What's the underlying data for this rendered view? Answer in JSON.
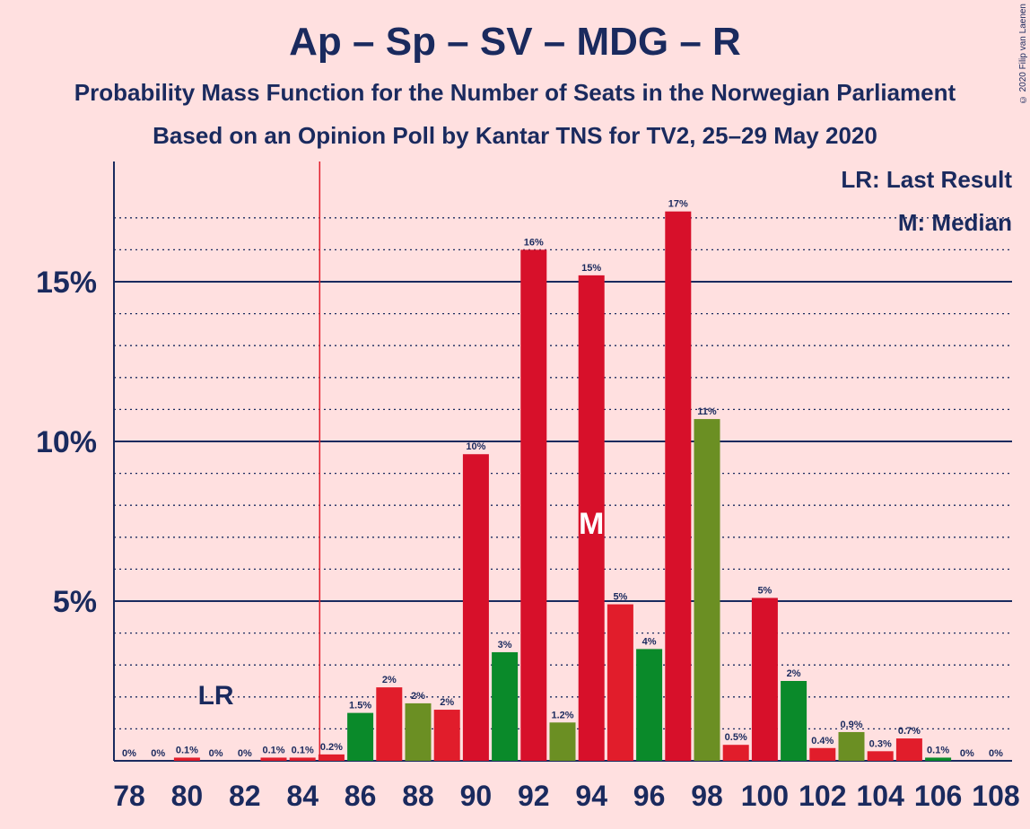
{
  "title": "Ap – Sp – SV – MDG – R",
  "subtitle": "Probability Mass Function for the Number of Seats in the Norwegian Parliament",
  "subtitle2": "Based on an Opinion Poll by Kantar TNS for TV2, 25–29 May 2020",
  "copyright": "© 2020 Filip van Laenen",
  "legend": {
    "last_result": "LR: Last Result",
    "median": "M: Median"
  },
  "colors": {
    "background": "#ffe0e0",
    "text": "#1a2a5e",
    "red": "#e11d2b",
    "red_alt": "#d7102a",
    "green": "#6b8f23",
    "green_alt": "#0a8a2a",
    "lr_line": "#e11d2b"
  },
  "chart_data": {
    "type": "bar",
    "x": [
      78,
      79,
      80,
      81,
      82,
      83,
      84,
      85,
      86,
      87,
      88,
      89,
      90,
      91,
      92,
      93,
      94,
      95,
      96,
      97,
      98,
      99,
      100,
      101,
      102,
      103,
      104,
      105,
      106,
      107,
      108
    ],
    "values": [
      0,
      0,
      0.1,
      0,
      0,
      0.1,
      0.1,
      0.2,
      1.5,
      2.3,
      1.8,
      1.6,
      9.6,
      3.4,
      16.0,
      1.2,
      15.2,
      4.9,
      3.5,
      17.2,
      10.7,
      0.5,
      5.1,
      2.5,
      0.4,
      0.9,
      0.3,
      0.7,
      0.1,
      0,
      0
    ],
    "labels": [
      "0%",
      "0%",
      "0.1%",
      "0%",
      "0%",
      "0.1%",
      "0.1%",
      "0.2%",
      "1.5%",
      "2%",
      "2%",
      "2%",
      "10%",
      "3%",
      "16%",
      "1.2%",
      "15%",
      "5%",
      "4%",
      "17%",
      "11%",
      "0.5%",
      "5%",
      "2%",
      "0.4%",
      "0.9%",
      "0.3%",
      "0.7%",
      "0.1%",
      "0%",
      "0%"
    ],
    "bar_colors": [
      "red",
      "red",
      "red",
      "red",
      "red",
      "red",
      "red",
      "red",
      "green_alt",
      "red",
      "green",
      "red",
      "red_alt",
      "green_alt",
      "red_alt",
      "green",
      "red_alt",
      "red",
      "green_alt",
      "red_alt",
      "green",
      "red",
      "red_alt",
      "green_alt",
      "red",
      "green",
      "red",
      "red",
      "green_alt",
      "red",
      "red"
    ],
    "x_ticks": [
      78,
      80,
      82,
      84,
      86,
      88,
      90,
      92,
      94,
      96,
      98,
      100,
      102,
      104,
      106,
      108
    ],
    "y_ticks": [
      5,
      10,
      15
    ],
    "y_tick_labels": [
      "5%",
      "10%",
      "15%"
    ],
    "ylim": [
      0,
      18.6
    ],
    "last_result": 85,
    "last_result_label": "LR",
    "median": 94,
    "median_label": "M"
  }
}
